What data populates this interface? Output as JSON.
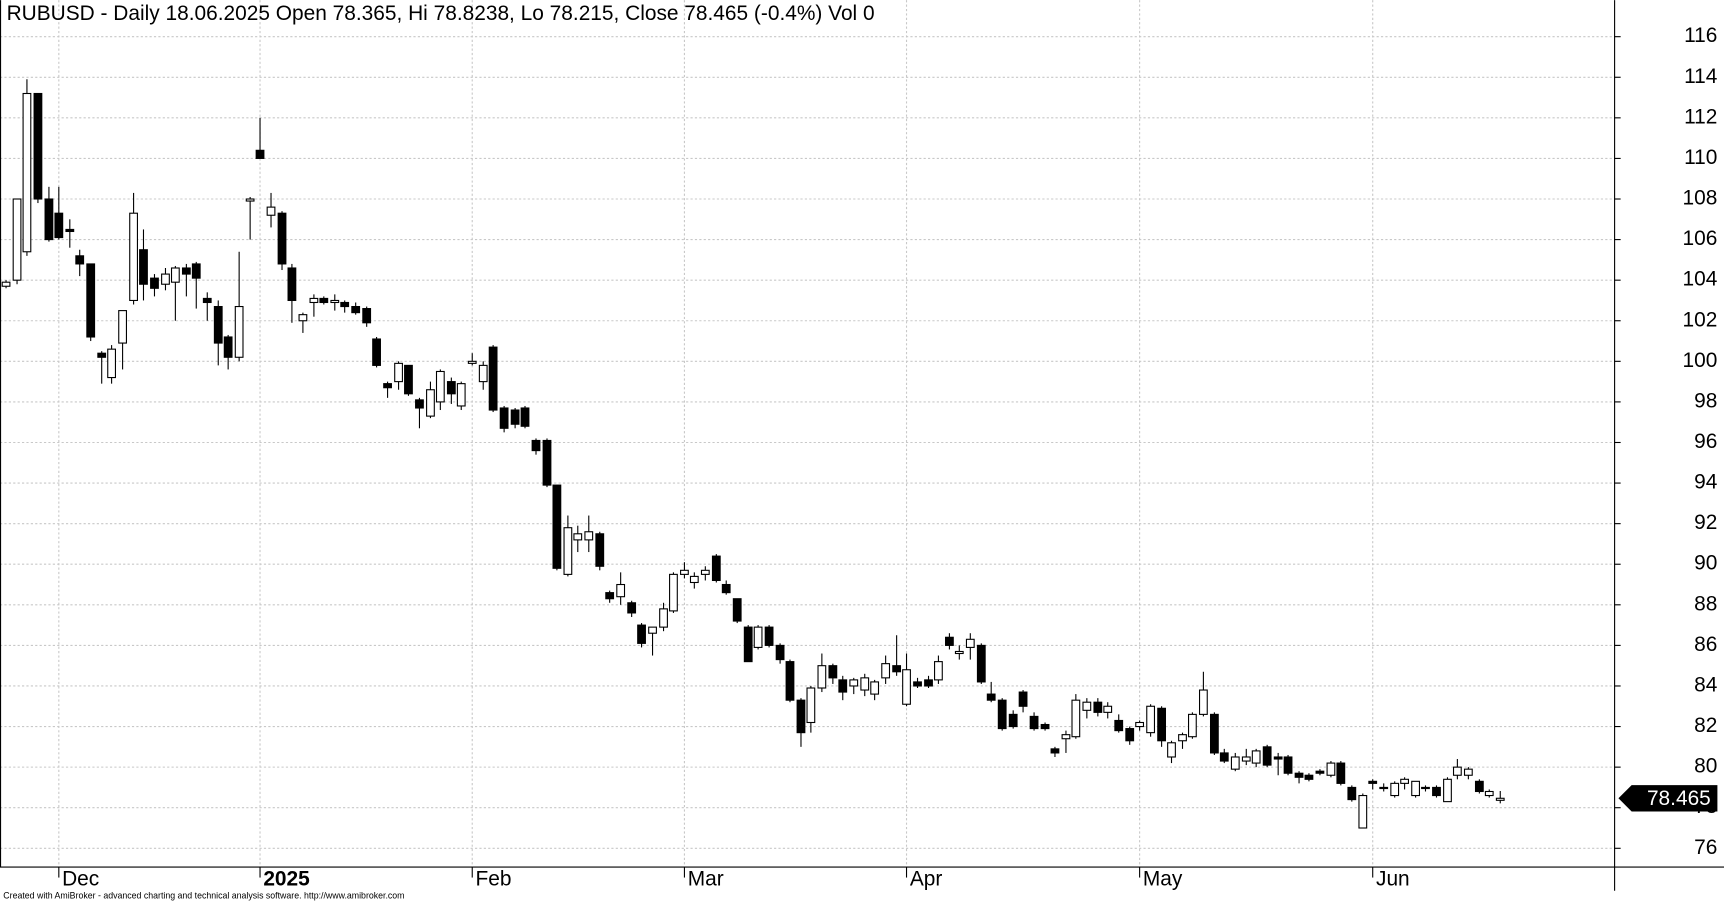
{
  "chart_data": {
    "type": "candlestick",
    "title": "RUBUSD - Daily 18.06.2025 Open 78.365, Hi 78.8238, Lo 78.215, Close 78.465 (-0.4%) Vol 0",
    "footer": "Created with AmiBroker - advanced charting and technical analysis software. http://www.amibroker.com",
    "categories": [
      null,
      null,
      null,
      null,
      null,
      "Dec",
      null,
      null,
      null,
      null,
      null,
      null,
      null,
      null,
      null,
      null,
      null,
      null,
      null,
      null,
      null,
      null,
      null,
      null,
      "2025",
      null,
      null,
      null,
      null,
      null,
      null,
      null,
      null,
      null,
      null,
      null,
      null,
      null,
      null,
      null,
      null,
      null,
      null,
      null,
      "Feb",
      null,
      null,
      null,
      null,
      null,
      null,
      null,
      null,
      null,
      null,
      null,
      null,
      null,
      null,
      null,
      null,
      null,
      null,
      null,
      "Mar",
      null,
      null,
      null,
      null,
      null,
      null,
      null,
      null,
      null,
      null,
      null,
      null,
      null,
      null,
      null,
      null,
      null,
      null,
      null,
      null,
      "Apr",
      null,
      null,
      null,
      null,
      null,
      null,
      null,
      null,
      null,
      null,
      null,
      null,
      null,
      null,
      null,
      null,
      null,
      null,
      null,
      null,
      null,
      "May",
      null,
      null,
      null,
      null,
      null,
      null,
      null,
      null,
      null,
      null,
      null,
      null,
      null,
      null,
      null,
      null,
      null,
      null,
      null,
      null,
      null,
      "Jun",
      null,
      null,
      null,
      null,
      null,
      null,
      null,
      null,
      null,
      null,
      null,
      null
    ],
    "open": [
      103.7,
      104.0,
      105.4,
      113.2,
      108.0,
      107.3,
      106.5,
      105.2,
      104.8,
      100.4,
      99.2,
      100.9,
      103.0,
      105.5,
      104.1,
      103.8,
      103.9,
      104.6,
      104.8,
      103.1,
      102.7,
      101.2,
      100.2,
      107.9,
      110.4,
      107.2,
      107.3,
      104.6,
      102.0,
      102.9,
      103.1,
      102.9,
      102.9,
      102.7,
      102.6,
      101.1,
      98.9,
      99.0,
      99.8,
      98.1,
      97.3,
      98.0,
      99.0,
      97.8,
      99.9,
      99.0,
      100.7,
      97.7,
      97.6,
      97.7,
      96.1,
      96.1,
      93.9,
      89.5,
      91.2,
      91.2,
      91.5,
      88.6,
      88.4,
      88.1,
      87.0,
      86.6,
      86.9,
      87.7,
      89.5,
      89.1,
      89.5,
      90.4,
      89.0,
      88.3,
      86.9,
      85.9,
      86.9,
      86.0,
      85.2,
      83.3,
      82.2,
      83.9,
      85.0,
      84.3,
      84.0,
      83.8,
      83.6,
      84.4,
      85.0,
      83.1,
      84.2,
      84.3,
      84.3,
      86.4,
      85.6,
      85.9,
      86.0,
      83.6,
      83.3,
      82.6,
      83.7,
      82.5,
      82.1,
      80.9,
      81.4,
      81.5,
      82.8,
      83.2,
      82.7,
      82.3,
      81.9,
      82.0,
      81.7,
      82.9,
      80.5,
      81.3,
      81.5,
      82.6,
      82.6,
      80.7,
      79.9,
      80.3,
      80.2,
      81.0,
      80.5,
      80.5,
      79.7,
      79.6,
      79.8,
      79.6,
      80.2,
      79.0,
      77.0,
      79.3,
      79.0,
      78.6,
      79.2,
      78.6,
      79.0,
      79.0,
      78.3,
      79.6,
      79.6,
      79.3,
      78.6,
      78.365
    ],
    "high": [
      104.0,
      108.0,
      113.9,
      113.2,
      108.6,
      108.6,
      107.0,
      105.5,
      104.8,
      100.5,
      100.8,
      102.5,
      108.3,
      106.5,
      104.3,
      104.6,
      104.7,
      104.8,
      104.9,
      103.4,
      103.0,
      101.3,
      105.4,
      108.1,
      112.0,
      108.3,
      107.4,
      104.8,
      102.4,
      103.3,
      103.2,
      103.3,
      103.0,
      102.9,
      102.7,
      101.2,
      99.0,
      100.0,
      99.8,
      98.2,
      99.0,
      99.6,
      99.2,
      99.0,
      100.4,
      100.0,
      100.8,
      97.8,
      97.7,
      97.8,
      96.2,
      96.2,
      93.9,
      92.4,
      91.9,
      92.4,
      91.6,
      88.7,
      89.6,
      88.2,
      87.1,
      86.9,
      88.1,
      89.6,
      90.1,
      89.6,
      89.9,
      90.5,
      89.2,
      88.3,
      87.0,
      87.0,
      87.0,
      86.1,
      85.3,
      83.4,
      84.0,
      85.6,
      85.1,
      84.5,
      84.4,
      84.6,
      84.3,
      85.5,
      86.5,
      85.6,
      84.4,
      84.5,
      85.5,
      86.6,
      86.0,
      86.6,
      86.1,
      84.2,
      83.4,
      82.8,
      83.8,
      82.7,
      82.2,
      81.0,
      81.8,
      83.6,
      83.4,
      83.4,
      83.2,
      82.6,
      82.0,
      82.3,
      83.1,
      83.0,
      81.3,
      81.7,
      82.7,
      84.7,
      82.7,
      80.9,
      80.7,
      80.9,
      80.9,
      81.1,
      80.7,
      80.6,
      79.8,
      79.7,
      79.9,
      80.3,
      80.3,
      79.1,
      78.7,
      79.4,
      79.2,
      79.3,
      79.5,
      79.3,
      79.1,
      79.1,
      79.5,
      80.4,
      80.0,
      79.4,
      78.9,
      78.8238
    ],
    "low": [
      103.6,
      103.8,
      105.2,
      107.8,
      105.9,
      106.0,
      105.6,
      104.2,
      101.0,
      98.9,
      98.9,
      99.6,
      102.8,
      103.0,
      103.2,
      103.5,
      102.0,
      103.2,
      102.6,
      102.0,
      99.8,
      99.6,
      100.0,
      106.0,
      110.0,
      106.6,
      104.5,
      101.9,
      101.4,
      102.2,
      102.8,
      102.5,
      102.4,
      102.3,
      101.7,
      99.7,
      98.2,
      98.6,
      98.3,
      96.7,
      97.2,
      97.6,
      97.9,
      97.6,
      99.8,
      98.6,
      97.5,
      96.5,
      96.7,
      96.7,
      95.4,
      93.8,
      89.7,
      89.4,
      90.6,
      90.6,
      89.7,
      88.1,
      88.0,
      87.4,
      85.9,
      85.5,
      86.7,
      87.6,
      89.3,
      88.8,
      89.2,
      89.1,
      88.5,
      87.1,
      85.2,
      85.8,
      85.9,
      85.1,
      83.2,
      81.0,
      81.7,
      83.7,
      84.1,
      83.3,
      83.6,
      83.5,
      83.3,
      84.1,
      84.5,
      83.0,
      83.9,
      83.9,
      84.1,
      85.8,
      85.3,
      85.3,
      84.1,
      83.2,
      81.8,
      81.9,
      82.7,
      81.8,
      81.8,
      80.5,
      80.7,
      81.4,
      82.4,
      82.5,
      82.4,
      81.7,
      81.1,
      81.8,
      81.5,
      81.0,
      80.2,
      80.9,
      81.4,
      82.5,
      80.6,
      80.2,
      79.8,
      80.1,
      80.0,
      80.0,
      79.6,
      79.6,
      79.2,
      79.3,
      79.6,
      79.5,
      79.1,
      78.3,
      77.0,
      78.9,
      78.8,
      78.5,
      78.9,
      78.5,
      78.8,
      78.5,
      78.3,
      79.4,
      79.4,
      78.7,
      78.5,
      78.215
    ],
    "close": [
      103.9,
      108.0,
      113.2,
      108.0,
      106.0,
      106.1,
      106.4,
      104.8,
      101.2,
      100.2,
      100.6,
      102.5,
      107.3,
      103.8,
      103.6,
      104.3,
      104.6,
      104.3,
      104.1,
      102.9,
      100.9,
      100.2,
      102.7,
      108.0,
      110.0,
      107.6,
      104.8,
      103.0,
      102.3,
      103.1,
      102.9,
      103.0,
      102.7,
      102.4,
      101.9,
      99.8,
      98.7,
      99.9,
      98.4,
      97.7,
      98.6,
      99.5,
      98.4,
      98.9,
      100.0,
      99.8,
      97.6,
      96.7,
      96.9,
      96.8,
      95.6,
      93.9,
      89.8,
      91.8,
      91.5,
      91.6,
      89.9,
      88.3,
      89.0,
      87.6,
      86.1,
      86.9,
      87.8,
      89.5,
      89.7,
      89.4,
      89.7,
      89.2,
      88.6,
      87.2,
      85.2,
      86.9,
      86.0,
      85.3,
      83.3,
      81.7,
      83.9,
      85.0,
      84.4,
      83.7,
      84.3,
      84.4,
      84.2,
      85.1,
      84.7,
      84.8,
      84.0,
      84.0,
      85.2,
      86.0,
      85.7,
      86.3,
      84.2,
      83.3,
      81.9,
      82.0,
      83.0,
      81.9,
      81.9,
      80.7,
      81.6,
      83.3,
      83.2,
      82.7,
      83.0,
      81.8,
      81.3,
      82.2,
      83.0,
      81.3,
      81.2,
      81.6,
      82.6,
      83.8,
      80.7,
      80.3,
      80.5,
      80.5,
      80.8,
      80.1,
      80.4,
      79.7,
      79.5,
      79.4,
      79.7,
      80.2,
      79.2,
      78.4,
      78.6,
      79.2,
      79.0,
      79.2,
      79.4,
      79.3,
      79.0,
      78.6,
      79.4,
      80.0,
      79.9,
      78.8,
      78.8,
      78.465
    ],
    "up_color": "#ffffff",
    "down_color": "#000000",
    "ylim": [
      75.1,
      117.8
    ],
    "yticks": [
      76,
      78,
      80,
      82,
      84,
      86,
      88,
      90,
      92,
      94,
      96,
      98,
      100,
      102,
      104,
      106,
      108,
      110,
      112,
      114,
      116
    ],
    "grid": true
  }
}
